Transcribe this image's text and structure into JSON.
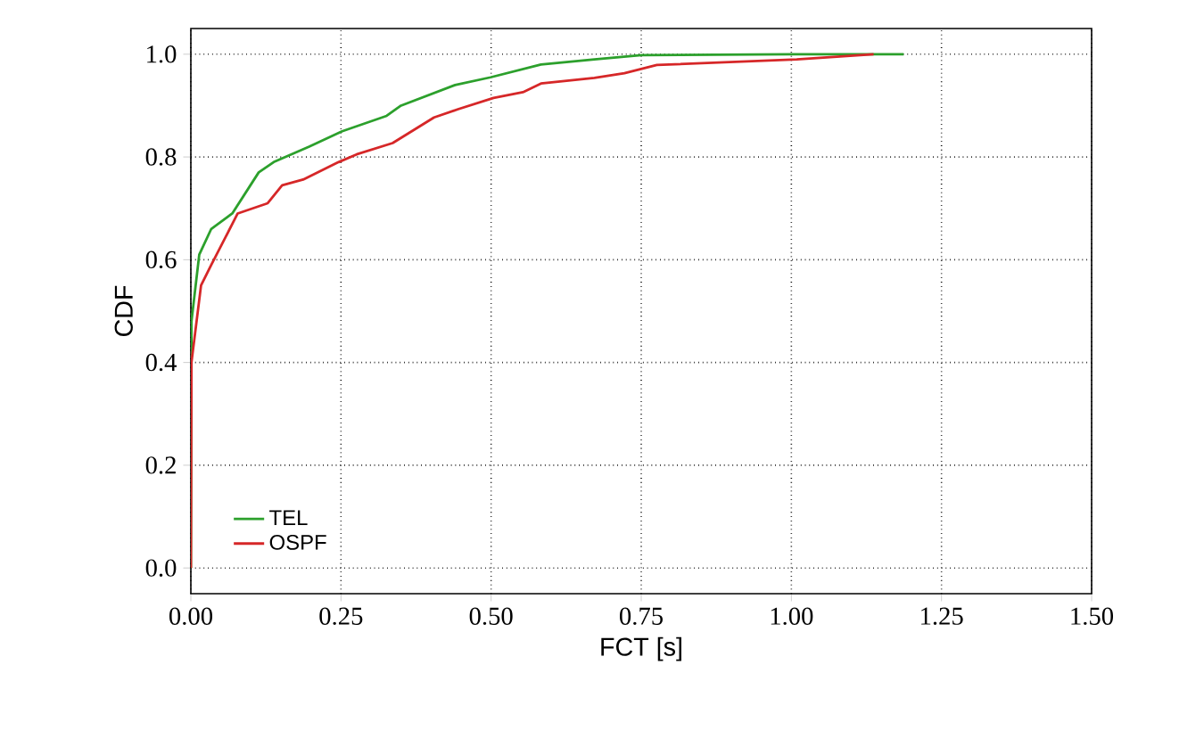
{
  "chart_data": {
    "type": "line",
    "xlabel": "FCT [s]",
    "ylabel": "CDF",
    "xlim": [
      0,
      1.5
    ],
    "ylim": [
      -0.05,
      1.05
    ],
    "xticks": [
      {
        "value": 0,
        "label": "0.00"
      },
      {
        "value": 0.25,
        "label": "0.25"
      },
      {
        "value": 0.5,
        "label": "0.50"
      },
      {
        "value": 0.75,
        "label": "0.75"
      },
      {
        "value": 1.0,
        "label": "1.00"
      },
      {
        "value": 1.25,
        "label": "1.25"
      },
      {
        "value": 1.5,
        "label": "1.50"
      }
    ],
    "yticks": [
      {
        "value": 0,
        "label": "0.0"
      },
      {
        "value": 0.2,
        "label": "0.2"
      },
      {
        "value": 0.4,
        "label": "0.4"
      },
      {
        "value": 0.6,
        "label": "0.6"
      },
      {
        "value": 0.8,
        "label": "0.8"
      },
      {
        "value": 1.0,
        "label": "1.0"
      }
    ],
    "grid": true,
    "legend": "bottom left",
    "line_style": "solid",
    "series": [
      {
        "name": "TEL",
        "color": "#2ca02c",
        "x": [
          0,
          0.001,
          0.014,
          0.034,
          0.069,
          0.113,
          0.138,
          0.197,
          0.252,
          0.326,
          0.35,
          0.44,
          0.499,
          0.583,
          0.672,
          0.75,
          1.0,
          1.187
        ],
        "values": [
          0,
          0.48,
          0.61,
          0.66,
          0.69,
          0.77,
          0.79,
          0.82,
          0.85,
          0.88,
          0.9,
          0.94,
          0.955,
          0.98,
          0.99,
          0.998,
          1.0,
          1.0
        ]
      },
      {
        "name": "OSPF",
        "color": "#d62728",
        "x": [
          0,
          0.001,
          0.017,
          0.034,
          0.078,
          0.128,
          0.152,
          0.187,
          0.246,
          0.276,
          0.336,
          0.405,
          0.445,
          0.504,
          0.553,
          0.583,
          0.672,
          0.722,
          0.776,
          1.009,
          1.137
        ],
        "values": [
          0,
          0.4,
          0.55,
          0.59,
          0.69,
          0.71,
          0.745,
          0.756,
          0.79,
          0.805,
          0.827,
          0.877,
          0.893,
          0.915,
          0.926,
          0.943,
          0.954,
          0.963,
          0.979,
          0.99,
          1.0
        ]
      }
    ]
  }
}
